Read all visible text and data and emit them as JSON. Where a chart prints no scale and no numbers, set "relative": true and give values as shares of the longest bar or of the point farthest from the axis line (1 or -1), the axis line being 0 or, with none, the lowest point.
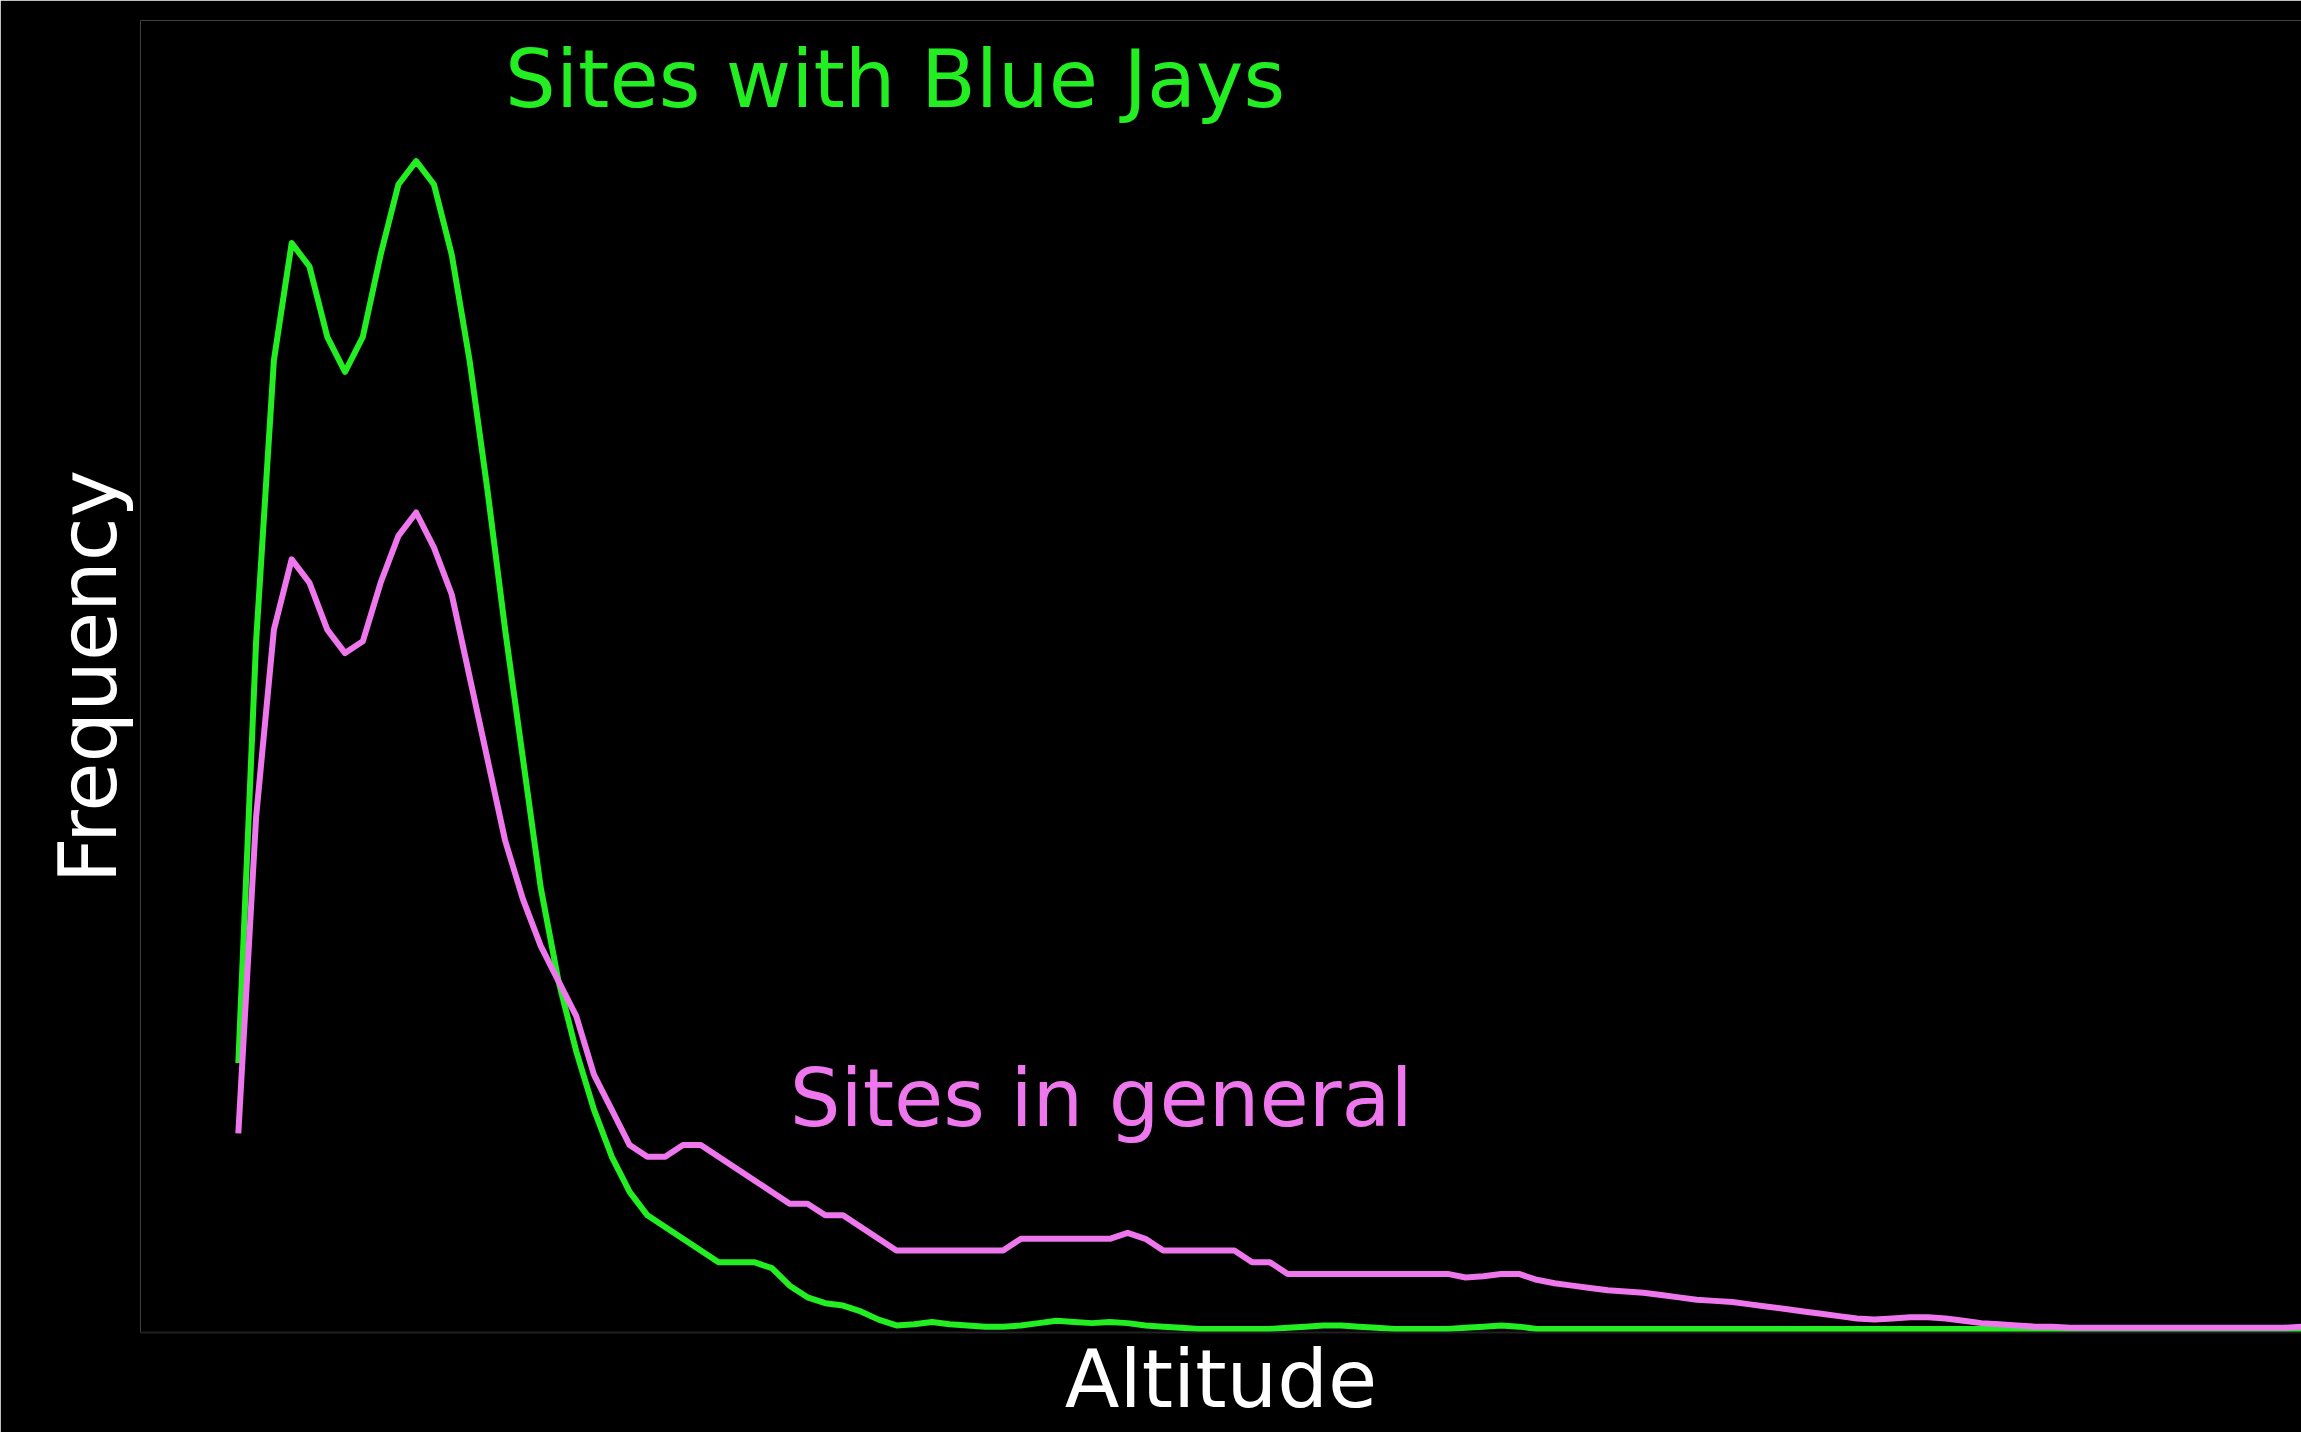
{
  "chart_data": {
    "type": "line",
    "relative": true,
    "xlabel": "Altitude",
    "ylabel": "Frequency",
    "grid": false,
    "line_style": "solid",
    "marker": "none",
    "categories": [
      null,
      null,
      null,
      null,
      null,
      null,
      null,
      null,
      null,
      null,
      null,
      null,
      null,
      null,
      null,
      null,
      null,
      null,
      null,
      null,
      null,
      null,
      null,
      null,
      null,
      null,
      null,
      null,
      null,
      null,
      null,
      null,
      null,
      null,
      null,
      null,
      null,
      null,
      null,
      null,
      null,
      null,
      null,
      null,
      null,
      null,
      null,
      null,
      null,
      null,
      null,
      null,
      null,
      null,
      null,
      null,
      null,
      null,
      null,
      null,
      null,
      null,
      null,
      null,
      null,
      null,
      null,
      null,
      null,
      null,
      null,
      null,
      null,
      null,
      null,
      null,
      null,
      null,
      null,
      null,
      null,
      null,
      null,
      null,
      null,
      null,
      null,
      null,
      null,
      null,
      null,
      null,
      null,
      null,
      null,
      null,
      null,
      null,
      null,
      null,
      null,
      null,
      null,
      null,
      null,
      null,
      null,
      null,
      null,
      null,
      null,
      null,
      null,
      null,
      null,
      null,
      null
    ],
    "series": [
      {
        "name": "Sites with Blue Jays",
        "color": "#22ee22",
        "values": [
          0.23,
          0.59,
          0.83,
          0.93,
          0.91,
          0.85,
          0.82,
          0.85,
          0.92,
          0.98,
          1,
          0.98,
          0.92,
          0.83,
          0.72,
          0.6,
          0.49,
          0.38,
          0.3,
          0.24,
          0.19,
          0.15,
          0.12,
          0.1,
          0.09,
          0.08,
          0.07,
          0.06,
          0.06,
          0.06,
          0.055,
          0.04,
          0.03,
          0.025,
          0.023,
          0.018,
          0.011,
          0.006,
          0.007,
          0.009,
          0.007,
          0.006,
          0.005,
          0.005,
          0.006,
          0.008,
          0.01,
          0.009,
          0.008,
          0.009,
          0.008,
          0.006,
          0.005,
          0.004,
          0.003,
          0.003,
          0.003,
          0.003,
          0.003,
          0.004,
          0.005,
          0.006,
          0.006,
          0.005,
          0.004,
          0.003,
          0.003,
          0.003,
          0.003,
          0.004,
          0.005,
          0.006,
          0.005,
          0.003,
          0.003,
          0.003,
          0.003,
          0.003,
          0.003,
          0.003,
          0.003,
          0.003,
          0.003,
          0.003,
          0.003,
          0.003,
          0.003,
          0.003,
          0.003,
          0.003,
          0.003,
          0.003,
          0.003,
          0.003,
          0.003,
          0.003,
          0.003,
          0.003,
          0.003,
          0.003,
          0.003,
          0.003,
          0.003,
          0.003,
          0.003,
          0.003,
          0.003,
          0.003,
          0.003,
          0.003,
          0.003,
          0.003,
          0.003,
          0.003,
          0.003,
          0.003,
          0.003
        ]
      },
      {
        "name": "Sites in general",
        "color": "#ee77ee",
        "values": [
          0.17,
          0.44,
          0.6,
          0.66,
          0.64,
          0.6,
          0.58,
          0.59,
          0.64,
          0.68,
          0.7,
          0.67,
          0.63,
          0.56,
          0.49,
          0.42,
          0.37,
          0.33,
          0.3,
          0.27,
          0.22,
          0.19,
          0.16,
          0.15,
          0.15,
          0.16,
          0.16,
          0.15,
          0.14,
          0.13,
          0.12,
          0.11,
          0.11,
          0.1,
          0.1,
          0.09,
          0.08,
          0.07,
          0.07,
          0.07,
          0.07,
          0.07,
          0.07,
          0.07,
          0.08,
          0.08,
          0.08,
          0.08,
          0.08,
          0.08,
          0.085,
          0.08,
          0.07,
          0.07,
          0.07,
          0.07,
          0.07,
          0.06,
          0.06,
          0.05,
          0.05,
          0.05,
          0.05,
          0.05,
          0.05,
          0.05,
          0.05,
          0.05,
          0.05,
          0.047,
          0.048,
          0.05,
          0.05,
          0.045,
          0.042,
          0.04,
          0.038,
          0.036,
          0.035,
          0.034,
          0.032,
          0.03,
          0.028,
          0.027,
          0.026,
          0.024,
          0.022,
          0.02,
          0.018,
          0.016,
          0.014,
          0.012,
          0.011,
          0.012,
          0.013,
          0.013,
          0.012,
          0.01,
          0.008,
          0.007,
          0.006,
          0.005,
          0.005,
          0.004,
          0.004,
          0.004,
          0.004,
          0.004,
          0.004,
          0.004,
          0.004,
          0.004,
          0.004,
          0.004,
          0.004,
          0.004,
          0.005
        ]
      }
    ]
  }
}
